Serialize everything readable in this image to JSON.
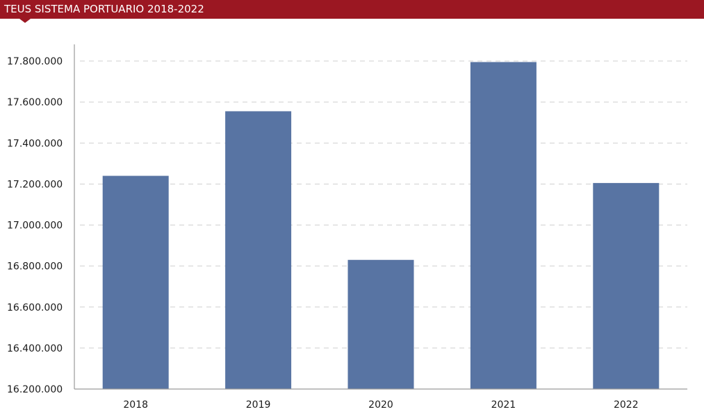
{
  "header": {
    "title": "TEUS SISTEMA PORTUARIO 2018-2022"
  },
  "colors": {
    "header_bg": "#9b1722",
    "bar": "#5874a3",
    "axis": "#9a9a9a",
    "grid": "#cfcfcf"
  },
  "chart_data": {
    "type": "bar",
    "title": "TEUS SISTEMA PORTUARIO 2018-2022",
    "xlabel": "",
    "ylabel": "",
    "categories": [
      "2018",
      "2019",
      "2020",
      "2021",
      "2022"
    ],
    "values": [
      17240000,
      17555000,
      16830000,
      17795000,
      17205000
    ],
    "ylim": [
      16200000,
      17800000
    ],
    "yticks": [
      16200000,
      16400000,
      16600000,
      16800000,
      17000000,
      17200000,
      17400000,
      17600000,
      17800000
    ],
    "ytick_labels": [
      "16.200.000",
      "16.400.000",
      "16.600.000",
      "16.800.000",
      "17.000.000",
      "17.200.000",
      "17.400.000",
      "17.600.000",
      "17.800.000"
    ],
    "grid": true,
    "legend": false
  }
}
